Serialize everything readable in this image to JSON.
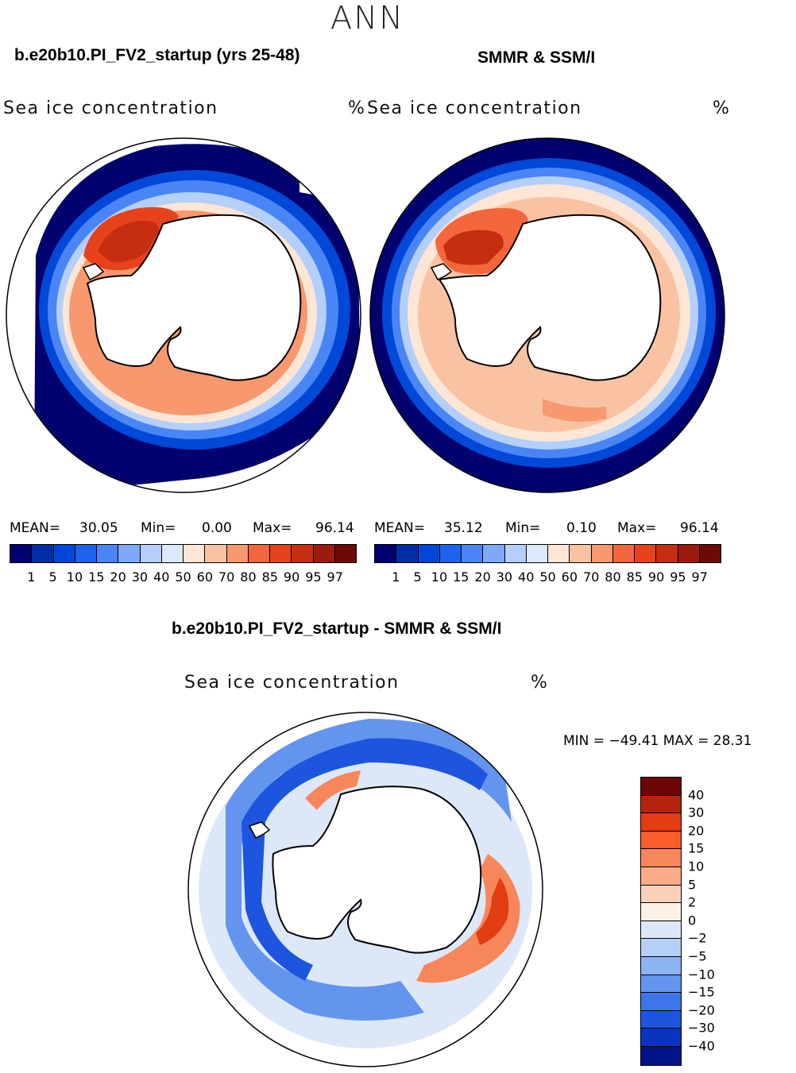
{
  "figure": {
    "season": "ANN"
  },
  "panels": [
    {
      "title": "b.e20b10.PI_FV2_startup (yrs 25-48)",
      "field": "Sea ice concentration",
      "units": "%",
      "mean_label": "MEAN=",
      "mean": "30.05",
      "min_label": "Min=",
      "min": "0.00",
      "max_label": "Max=",
      "max": "96.14"
    },
    {
      "title": "SMMR & SSM/I",
      "field": "Sea ice concentration",
      "units": "%",
      "mean_label": "MEAN=",
      "mean": "35.12",
      "min_label": "Min=",
      "min": "0.10",
      "max_label": "Max=",
      "max": "96.14"
    }
  ],
  "diff_panel": {
    "title": "b.e20b10.PI_FV2_startup - SMMR & SSM/I",
    "field": "Sea ice concentration",
    "units": "%",
    "minmax_text": "MIN = −49.41 MAX =   28.31"
  },
  "colorbar_main": {
    "colors": [
      "#00006e",
      "#002ea3",
      "#0048d8",
      "#1e62ee",
      "#4a85f6",
      "#7ea8f8",
      "#b4cff9",
      "#dce9fb",
      "#fde6d5",
      "#f9c3a3",
      "#f7986f",
      "#f4673c",
      "#e8421c",
      "#c62e10",
      "#9c1b0c",
      "#6c0b05"
    ],
    "tick_labels": [
      "1",
      "5",
      "10",
      "15",
      "20",
      "30",
      "40",
      "50",
      "60",
      "70",
      "80",
      "85",
      "90",
      "95",
      "97"
    ]
  },
  "colorbar_diff": {
    "colors": [
      "#6c0505",
      "#b3240d",
      "#e33d13",
      "#fb5d2c",
      "#f8865b",
      "#f9ab8a",
      "#fbd0bb",
      "#fdf1e7",
      "#dce8f8",
      "#b6cff6",
      "#8cb3f2",
      "#6395ef",
      "#3b77ea",
      "#1e55de",
      "#0a33bf",
      "#03148b"
    ],
    "tick_labels": [
      "40",
      "30",
      "20",
      "15",
      "10",
      "5",
      "2",
      "0",
      "−2",
      "−5",
      "−10",
      "−15",
      "−20",
      "−30",
      "−40"
    ]
  },
  "chart_data": [
    {
      "type": "heatmap",
      "title": "b.e20b10.PI_FV2_startup (yrs 25-48)",
      "variable": "Sea ice concentration",
      "units": "%",
      "projection": "south polar stereographic",
      "statistics": {
        "mean": 30.05,
        "min": 0.0,
        "max": 96.14
      },
      "levels": [
        1,
        5,
        10,
        15,
        20,
        30,
        40,
        50,
        60,
        70,
        80,
        85,
        90,
        95,
        97
      ]
    },
    {
      "type": "heatmap",
      "title": "SMMR & SSM/I",
      "variable": "Sea ice concentration",
      "units": "%",
      "projection": "south polar stereographic",
      "statistics": {
        "mean": 35.12,
        "min": 0.1,
        "max": 96.14
      },
      "levels": [
        1,
        5,
        10,
        15,
        20,
        30,
        40,
        50,
        60,
        70,
        80,
        85,
        90,
        95,
        97
      ]
    },
    {
      "type": "heatmap",
      "title": "b.e20b10.PI_FV2_startup - SMMR & SSM/I",
      "variable": "Sea ice concentration",
      "units": "%",
      "projection": "south polar stereographic",
      "statistics": {
        "min": -49.41,
        "max": 28.31
      },
      "levels": [
        -40,
        -30,
        -20,
        -15,
        -10,
        -5,
        -2,
        0,
        2,
        5,
        10,
        15,
        20,
        30,
        40
      ]
    }
  ]
}
